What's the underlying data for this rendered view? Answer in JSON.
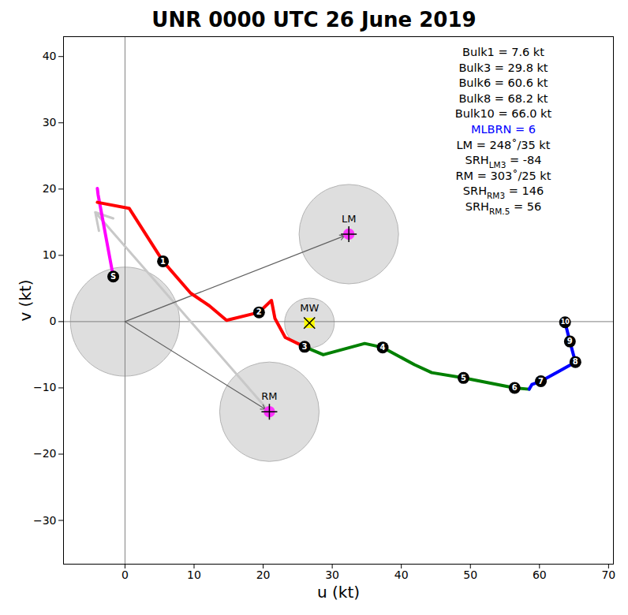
{
  "chart_data": {
    "type": "hodograph",
    "title": "UNR 0000 UTC 26 June 2019",
    "x_label": "u (kt)",
    "y_label": "v (kt)",
    "xlim": [
      -8.9,
      70.7
    ],
    "ylim": [
      -36.6,
      43.0
    ],
    "xticks": [
      0,
      10,
      20,
      30,
      40,
      50,
      60,
      70
    ],
    "yticks": [
      -30,
      -20,
      -10,
      0,
      10,
      20,
      30,
      40
    ],
    "origin_circle": {
      "u": 0,
      "v": 0,
      "radius": 7.9
    },
    "series": [
      {
        "color": "#ff00ff",
        "points": [
          [
            -1.7,
            6.8
          ],
          [
            -3.9,
            19.2
          ],
          [
            -4.0,
            20.1
          ]
        ]
      },
      {
        "color": "#ff0000",
        "points": [
          [
            -4.0,
            18.0
          ],
          [
            0.6,
            17.1
          ],
          [
            5.5,
            9.1
          ],
          [
            9.5,
            4.3
          ],
          [
            12.2,
            2.4
          ],
          [
            14.7,
            0.2
          ],
          [
            19.4,
            1.4
          ],
          [
            21.2,
            3.2
          ],
          [
            21.7,
            0.5
          ],
          [
            23.2,
            -2.4
          ],
          [
            26.0,
            -3.8
          ]
        ]
      },
      {
        "color": "#008000",
        "points": [
          [
            26.0,
            -3.8
          ],
          [
            28.7,
            -5.0
          ],
          [
            34.7,
            -3.3
          ],
          [
            37.3,
            -3.9
          ],
          [
            41.9,
            -6.5
          ],
          [
            44.4,
            -7.7
          ],
          [
            49.0,
            -8.5
          ],
          [
            56.4,
            -10.0
          ],
          [
            58.5,
            -10.2
          ]
        ]
      },
      {
        "color": "#0000ff",
        "points": [
          [
            58.5,
            -10.2
          ],
          [
            58.9,
            -9.5
          ],
          [
            60.2,
            -9.0
          ],
          [
            62.8,
            -7.5
          ],
          [
            65.2,
            -6.1
          ],
          [
            64.4,
            -3.0
          ],
          [
            63.7,
            -0.1
          ]
        ]
      }
    ],
    "height_markers": [
      {
        "label": "S",
        "u": -1.7,
        "v": 6.8
      },
      {
        "label": "1",
        "u": 5.5,
        "v": 9.1
      },
      {
        "label": "2",
        "u": 19.4,
        "v": 1.4
      },
      {
        "label": "3",
        "u": 26.0,
        "v": -3.8
      },
      {
        "label": "4",
        "u": 37.3,
        "v": -3.9
      },
      {
        "label": "5",
        "u": 49.0,
        "v": -8.5
      },
      {
        "label": "6",
        "u": 56.4,
        "v": -10.0
      },
      {
        "label": "7",
        "u": 60.2,
        "v": -9.0
      },
      {
        "label": "8",
        "u": 65.2,
        "v": -6.1
      },
      {
        "label": "9",
        "u": 64.4,
        "v": -3.0
      },
      {
        "label": "10",
        "u": 63.7,
        "v": -0.1
      }
    ],
    "storm_motions": [
      {
        "label": "LM",
        "u": 32.4,
        "v": 13.2,
        "radius": 7.2,
        "color": "#ff33ff",
        "marker": "plus",
        "arrow": true
      },
      {
        "label": "MW",
        "u": 26.7,
        "v": -0.2,
        "radius": 3.6,
        "color": "#ffff00",
        "marker": "x",
        "arrow": false
      },
      {
        "label": "RM",
        "u": 20.9,
        "v": -13.6,
        "radius": 7.2,
        "color": "#ff33ff",
        "marker": "plus",
        "arrow": true
      }
    ],
    "gray_arrow": {
      "x1": 20.9,
      "y1": -13.6,
      "x2": -4.3,
      "y2": 16.5,
      "color": "#c8c8c8"
    },
    "annotations": [
      {
        "text": "Bulk1 = 7.6 kt"
      },
      {
        "text": "Bulk3 = 29.8 kt"
      },
      {
        "text": "Bulk6 = 60.6 kt"
      },
      {
        "text": "Bulk8 = 68.2 kt"
      },
      {
        "text": "Bulk10 = 66.0 kt"
      },
      {
        "text": "MLBRN = 6",
        "color": "#0000ff"
      },
      {
        "text": "LM = 248˚/35 kt"
      },
      {
        "text": "SRH",
        "sub": "LM3",
        "after": " = -84"
      },
      {
        "text": "RM = 303˚/25 kt"
      },
      {
        "text": "SRH",
        "sub": "RM3",
        "after": " = 146"
      },
      {
        "text": "SRH",
        "sub": "RM.5",
        "after": " = 56"
      }
    ]
  }
}
